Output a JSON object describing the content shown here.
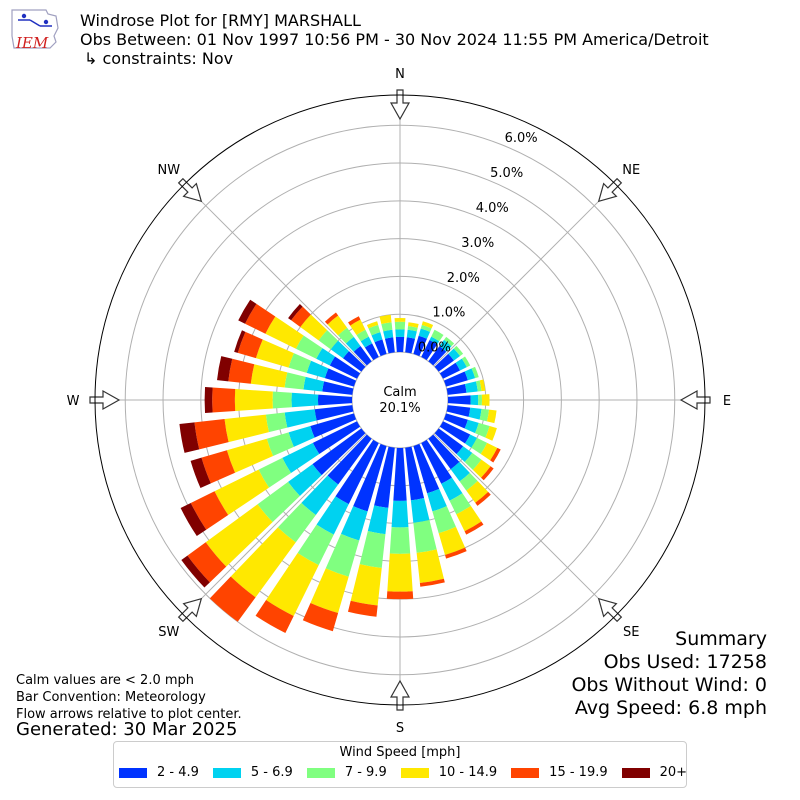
{
  "header": {
    "line1": "Windrose Plot for [RMY] MARSHALL",
    "line2": "Obs Between: 01 Nov 1997 10:56 PM - 30 Nov 2024 11:55 PM America/Detroit",
    "line3": "↳ constraints: Nov"
  },
  "logo": {
    "text": "IEM"
  },
  "calm": {
    "label": "Calm",
    "value": "20.1%"
  },
  "notes": {
    "line1": "Calm values are < 2.0 mph",
    "line2": "Bar Convention: Meteorology",
    "line3": "Flow arrows relative to plot center."
  },
  "generated": "Generated: 30 Mar 2025",
  "summary": {
    "title": "Summary",
    "obs_used": "Obs Used: 17258",
    "obs_without_wind": "Obs Without Wind: 0",
    "avg_speed": "Avg Speed: 6.8 mph"
  },
  "chart_data": {
    "type": "windrose",
    "radial_ticks": [
      "0.0%",
      "1.0%",
      "2.0%",
      "3.0%",
      "4.0%",
      "5.0%",
      "6.0%"
    ],
    "radial_range": [
      0,
      6.8
    ],
    "calm_percent": 20.1,
    "compass_labels": [
      "N",
      "NE",
      "E",
      "SE",
      "S",
      "SW",
      "W",
      "NW"
    ],
    "legend_title": "Wind Speed [mph]",
    "bins": [
      {
        "name": "2 - 4.9",
        "color": "#0033ff"
      },
      {
        "name": "5 - 6.9",
        "color": "#00d2f0"
      },
      {
        "name": "7 - 9.9",
        "color": "#80ff80"
      },
      {
        "name": "10 - 14.9",
        "color": "#ffe800"
      },
      {
        "name": "15 - 19.9",
        "color": "#ff4400"
      },
      {
        "name": "20+",
        "color": "#800000"
      }
    ],
    "directions": [
      0,
      10,
      20,
      30,
      40,
      50,
      60,
      70,
      80,
      90,
      100,
      110,
      120,
      130,
      140,
      150,
      160,
      170,
      180,
      190,
      200,
      210,
      220,
      230,
      240,
      250,
      260,
      270,
      280,
      290,
      300,
      310,
      320,
      330,
      340,
      350
    ],
    "cumulative": [
      [
        0.4,
        0.6,
        0.8,
        0.9,
        0.9,
        0.9
      ],
      [
        0.4,
        0.6,
        0.7,
        0.8,
        0.8,
        0.8
      ],
      [
        0.5,
        0.7,
        0.8,
        0.9,
        0.9,
        0.9
      ],
      [
        0.5,
        0.6,
        0.8,
        0.8,
        0.8,
        0.8
      ],
      [
        0.5,
        0.7,
        0.8,
        0.8,
        0.8,
        0.8
      ],
      [
        0.5,
        0.7,
        0.8,
        0.8,
        0.8,
        0.8
      ],
      [
        0.5,
        0.7,
        0.8,
        0.8,
        0.8,
        0.8
      ],
      [
        0.6,
        0.8,
        0.9,
        0.9,
        0.9,
        0.9
      ],
      [
        0.5,
        0.8,
        0.9,
        1.0,
        1.0,
        1.0
      ],
      [
        0.6,
        0.8,
        0.9,
        1.1,
        1.1,
        1.1
      ],
      [
        0.6,
        0.9,
        1.1,
        1.3,
        1.3,
        1.3
      ],
      [
        0.6,
        0.9,
        1.2,
        1.4,
        1.4,
        1.4
      ],
      [
        0.8,
        1.0,
        1.3,
        1.6,
        1.7,
        1.7
      ],
      [
        0.8,
        1.1,
        1.4,
        1.7,
        1.8,
        1.8
      ],
      [
        1.0,
        1.4,
        1.7,
        2.1,
        2.2,
        2.2
      ],
      [
        1.2,
        1.7,
        2.1,
        2.6,
        2.7,
        2.7
      ],
      [
        1.3,
        1.8,
        2.4,
        3.0,
        3.1,
        3.1
      ],
      [
        1.4,
        2.0,
        2.8,
        3.6,
        3.7,
        3.7
      ],
      [
        1.4,
        2.1,
        2.8,
        3.8,
        4.0,
        4.0
      ],
      [
        1.6,
        2.3,
        3.2,
        4.2,
        4.5,
        4.5
      ],
      [
        1.8,
        2.6,
        3.6,
        4.6,
        5.1,
        5.1
      ],
      [
        1.8,
        2.7,
        3.6,
        5.1,
        5.6,
        5.6
      ],
      [
        1.5,
        2.5,
        3.4,
        5.2,
        6.0,
        6.0
      ],
      [
        1.6,
        2.4,
        3.4,
        5.1,
        5.7,
        5.9
      ],
      [
        1.3,
        2.2,
        2.9,
        4.2,
        4.9,
        5.2
      ],
      [
        1.2,
        1.8,
        2.4,
        3.5,
        4.2,
        4.5
      ],
      [
        1.0,
        1.8,
        2.3,
        3.4,
        4.2,
        4.6
      ],
      [
        0.9,
        1.6,
        2.1,
        3.1,
        3.7,
        3.9
      ],
      [
        0.8,
        1.3,
        1.8,
        2.7,
        3.3,
        3.6
      ],
      [
        0.8,
        1.3,
        1.8,
        2.7,
        3.2,
        3.3
      ],
      [
        0.8,
        1.2,
        1.8,
        2.7,
        3.3,
        3.5
      ],
      [
        0.6,
        1.0,
        1.4,
        2.0,
        2.3,
        2.4
      ],
      [
        0.5,
        0.8,
        1.1,
        1.5,
        1.6,
        1.6
      ],
      [
        0.4,
        0.6,
        0.8,
        1.1,
        1.2,
        1.2
      ],
      [
        0.4,
        0.6,
        0.8,
        0.9,
        0.9,
        0.9
      ],
      [
        0.4,
        0.6,
        0.8,
        1.0,
        1.0,
        1.0
      ]
    ]
  }
}
